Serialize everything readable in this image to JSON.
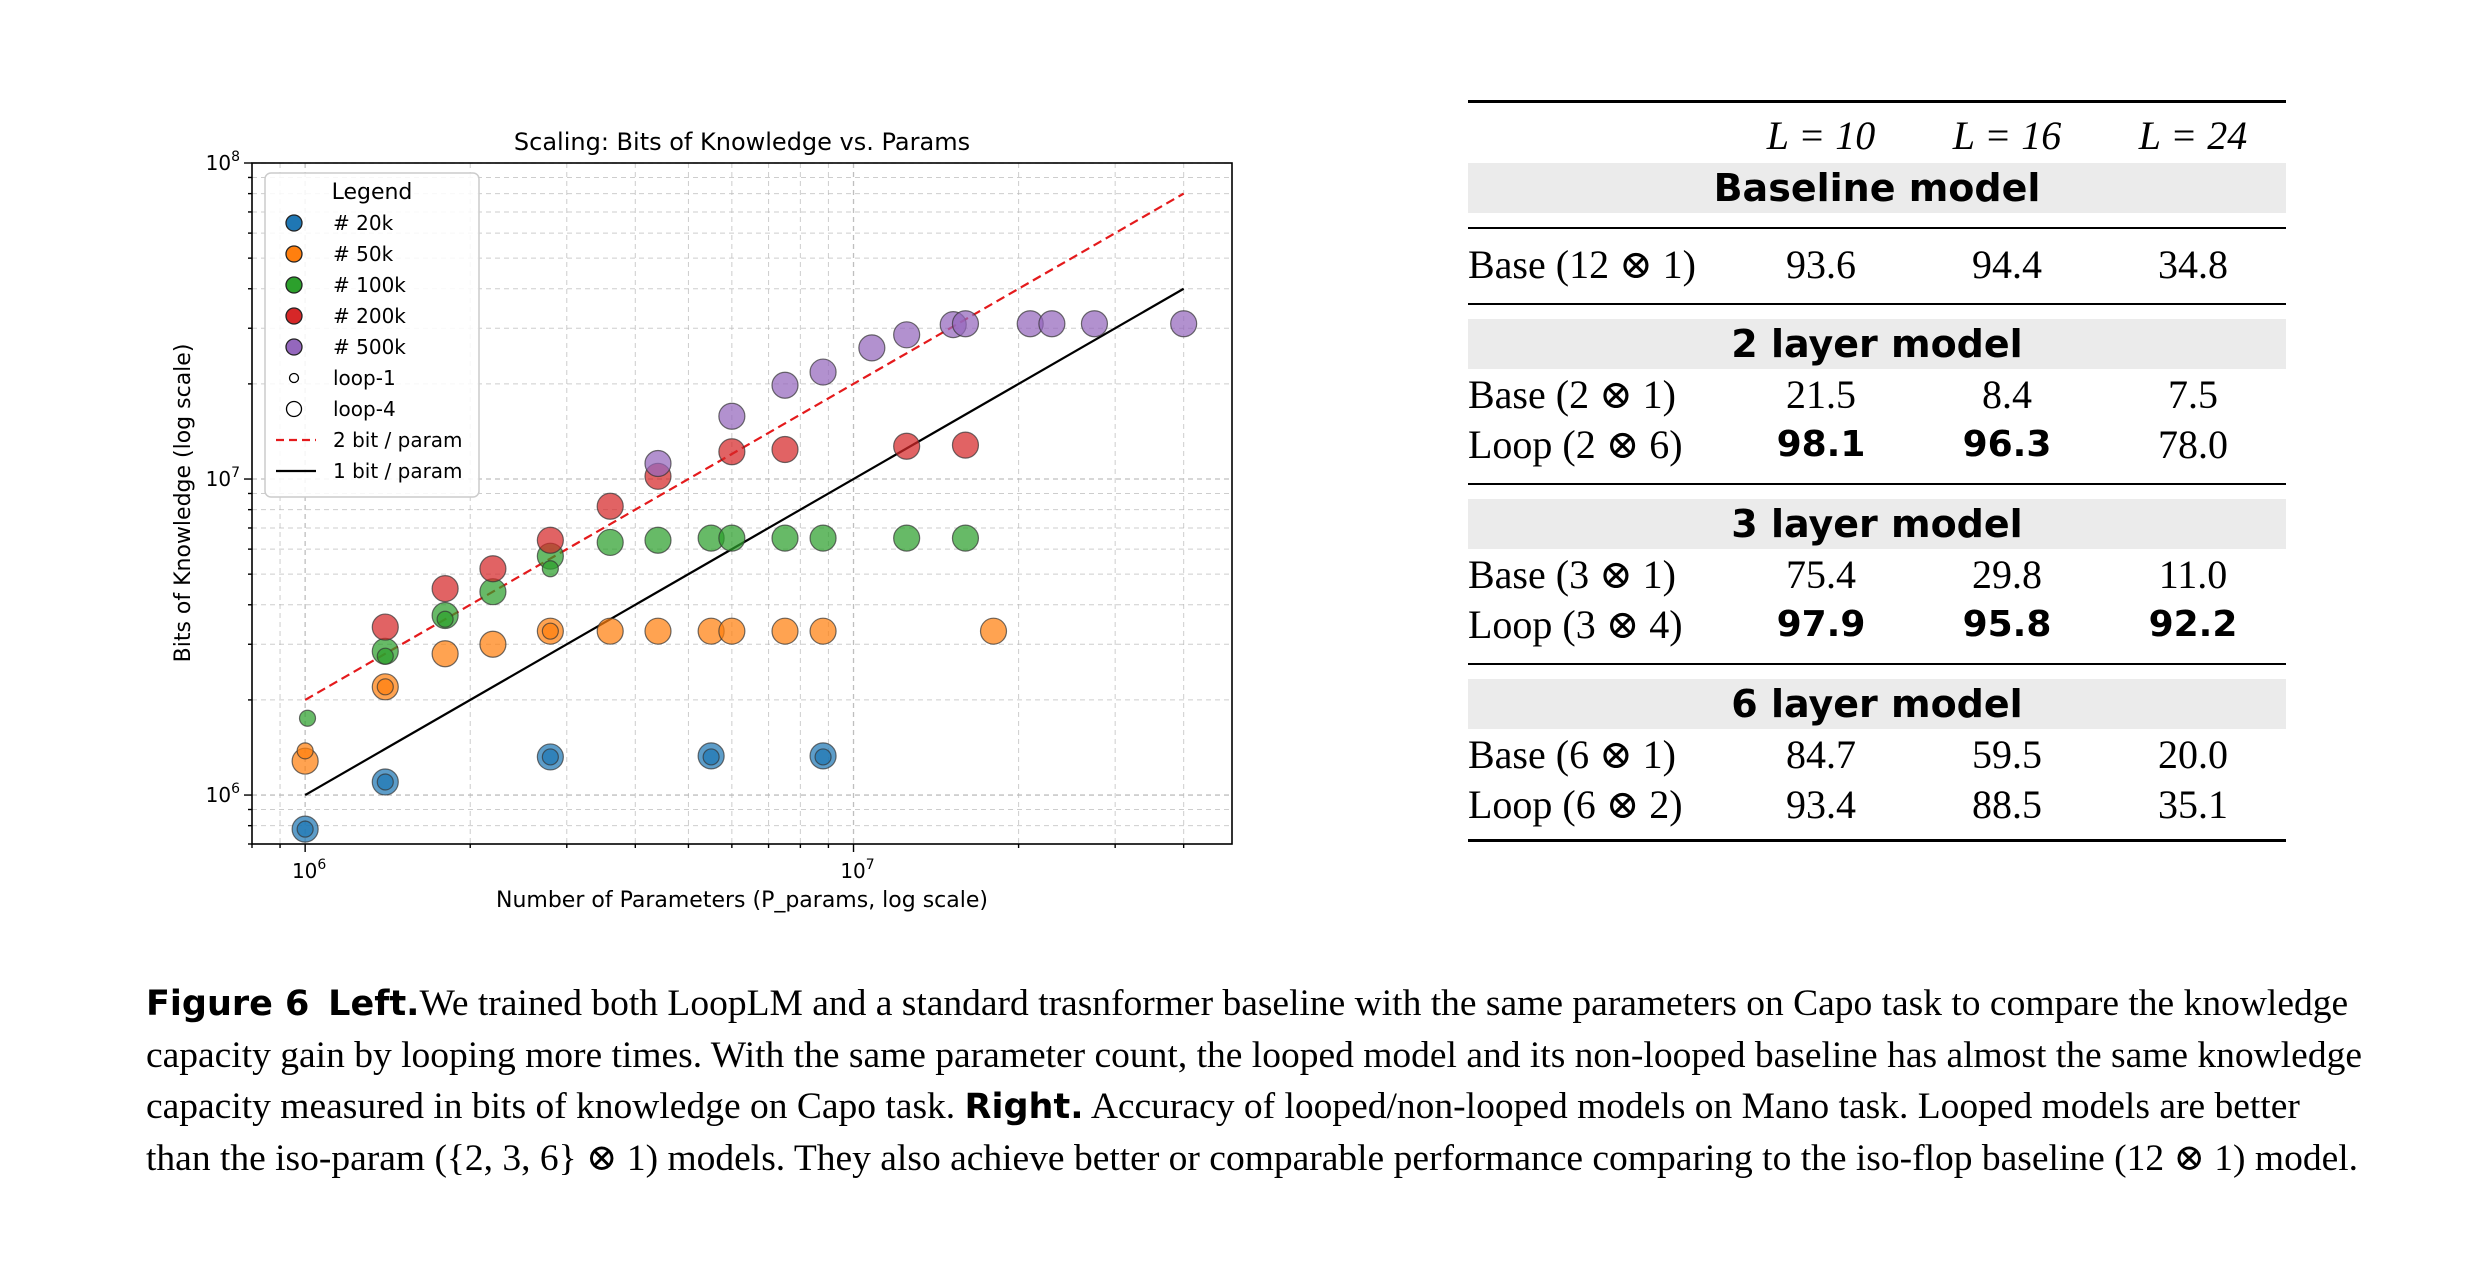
{
  "chart_data": {
    "type": "scatter",
    "title": "Scaling: Bits of Knowledge vs. Params",
    "xlabel": "Number of Parameters (P_params, log scale)",
    "ylabel": "Bits of Knowledge (log scale)",
    "xscale": "log",
    "yscale": "log",
    "xlim": [
      800000,
      49000000
    ],
    "ylim": [
      700000,
      100000000
    ],
    "xticks": [
      {
        "base": "10",
        "exp": "6"
      },
      {
        "base": "10",
        "exp": "7"
      }
    ],
    "yticks": [
      {
        "base": "10",
        "exp": "6"
      },
      {
        "base": "10",
        "exp": "7"
      },
      {
        "base": "10",
        "exp": "8"
      }
    ],
    "grid": true,
    "legend": {
      "title": "Legend",
      "position": "upper-left",
      "items": [
        {
          "label": "# 20k",
          "kind": "dot",
          "color": "#1f77b4"
        },
        {
          "label": "# 50k",
          "kind": "dot",
          "color": "#ff7f0e"
        },
        {
          "label": "# 100k",
          "kind": "dot",
          "color": "#2ca02c"
        },
        {
          "label": "# 200k",
          "kind": "dot",
          "color": "#d62728"
        },
        {
          "label": "# 500k",
          "kind": "dot",
          "color": "#9467bd"
        },
        {
          "label": "loop-1",
          "kind": "small-circle",
          "color": "#000000"
        },
        {
          "label": "loop-4",
          "kind": "large-circle",
          "color": "#000000"
        },
        {
          "label": "2 bit / param",
          "kind": "dashed-line",
          "color": "#e41a1c"
        },
        {
          "label": "1 bit / param",
          "kind": "solid-line",
          "color": "#000000"
        }
      ]
    },
    "lines": [
      {
        "name": "2 bit / param",
        "x": [
          1000000,
          40000000
        ],
        "y": [
          2000000,
          80000000
        ],
        "color": "#e41a1c",
        "style": "dashed"
      },
      {
        "name": "1 bit / param",
        "x": [
          1000000,
          40000000
        ],
        "y": [
          1000000,
          40000000
        ],
        "color": "#000000",
        "style": "solid"
      }
    ],
    "series": [
      {
        "name": "# 20k",
        "color": "#1f77b4",
        "points": [
          {
            "x": 1000000,
            "y": 780000,
            "size": "large"
          },
          {
            "x": 1000000,
            "y": 780000,
            "size": "small"
          },
          {
            "x": 1400000,
            "y": 1100000,
            "size": "large"
          },
          {
            "x": 1400000,
            "y": 1100000,
            "size": "small"
          },
          {
            "x": 2800000,
            "y": 1320000,
            "size": "large"
          },
          {
            "x": 2800000,
            "y": 1320000,
            "size": "small"
          },
          {
            "x": 5500000,
            "y": 1330000,
            "size": "large"
          },
          {
            "x": 5500000,
            "y": 1320000,
            "size": "small"
          },
          {
            "x": 8800000,
            "y": 1330000,
            "size": "large"
          },
          {
            "x": 8800000,
            "y": 1320000,
            "size": "small"
          }
        ]
      },
      {
        "name": "# 50k",
        "color": "#ff7f0e",
        "points": [
          {
            "x": 1000000,
            "y": 1280000,
            "size": "large"
          },
          {
            "x": 1000000,
            "y": 1380000,
            "size": "small"
          },
          {
            "x": 1400000,
            "y": 2200000,
            "size": "large"
          },
          {
            "x": 1400000,
            "y": 2200000,
            "size": "small"
          },
          {
            "x": 1800000,
            "y": 2800000,
            "size": "large"
          },
          {
            "x": 2200000,
            "y": 3000000,
            "size": "large"
          },
          {
            "x": 2800000,
            "y": 3300000,
            "size": "large"
          },
          {
            "x": 2800000,
            "y": 3300000,
            "size": "small"
          },
          {
            "x": 3600000,
            "y": 3300000,
            "size": "large"
          },
          {
            "x": 4400000,
            "y": 3300000,
            "size": "large"
          },
          {
            "x": 5500000,
            "y": 3300000,
            "size": "large"
          },
          {
            "x": 6000000,
            "y": 3300000,
            "size": "large"
          },
          {
            "x": 7500000,
            "y": 3300000,
            "size": "large"
          },
          {
            "x": 8800000,
            "y": 3300000,
            "size": "large"
          },
          {
            "x": 18000000,
            "y": 3300000,
            "size": "large"
          }
        ]
      },
      {
        "name": "# 100k",
        "color": "#2ca02c",
        "points": [
          {
            "x": 1010000,
            "y": 1750000,
            "size": "small"
          },
          {
            "x": 1400000,
            "y": 2850000,
            "size": "large"
          },
          {
            "x": 1400000,
            "y": 2750000,
            "size": "small"
          },
          {
            "x": 1800000,
            "y": 3700000,
            "size": "large"
          },
          {
            "x": 1800000,
            "y": 3600000,
            "size": "small"
          },
          {
            "x": 2200000,
            "y": 4400000,
            "size": "large"
          },
          {
            "x": 2800000,
            "y": 5700000,
            "size": "large"
          },
          {
            "x": 2800000,
            "y": 5200000,
            "size": "small"
          },
          {
            "x": 3600000,
            "y": 6300000,
            "size": "large"
          },
          {
            "x": 4400000,
            "y": 6400000,
            "size": "large"
          },
          {
            "x": 5500000,
            "y": 6500000,
            "size": "large"
          },
          {
            "x": 6000000,
            "y": 6500000,
            "size": "large"
          },
          {
            "x": 7500000,
            "y": 6500000,
            "size": "large"
          },
          {
            "x": 8800000,
            "y": 6500000,
            "size": "large"
          },
          {
            "x": 12500000,
            "y": 6500000,
            "size": "large"
          },
          {
            "x": 16000000,
            "y": 6500000,
            "size": "large"
          }
        ]
      },
      {
        "name": "# 200k",
        "color": "#d62728",
        "points": [
          {
            "x": 1400000,
            "y": 3400000,
            "size": "large"
          },
          {
            "x": 1800000,
            "y": 4500000,
            "size": "large"
          },
          {
            "x": 2200000,
            "y": 5200000,
            "size": "large"
          },
          {
            "x": 2800000,
            "y": 6400000,
            "size": "large"
          },
          {
            "x": 3600000,
            "y": 8200000,
            "size": "large"
          },
          {
            "x": 4400000,
            "y": 10200000,
            "size": "large"
          },
          {
            "x": 6000000,
            "y": 12200000,
            "size": "large"
          },
          {
            "x": 7500000,
            "y": 12400000,
            "size": "large"
          },
          {
            "x": 12500000,
            "y": 12700000,
            "size": "large"
          },
          {
            "x": 16000000,
            "y": 12800000,
            "size": "large"
          }
        ]
      },
      {
        "name": "# 500k",
        "color": "#9467bd",
        "points": [
          {
            "x": 4400000,
            "y": 11200000,
            "size": "large"
          },
          {
            "x": 6000000,
            "y": 15800000,
            "size": "large"
          },
          {
            "x": 7500000,
            "y": 19800000,
            "size": "large"
          },
          {
            "x": 8800000,
            "y": 21800000,
            "size": "large"
          },
          {
            "x": 10800000,
            "y": 26000000,
            "size": "large"
          },
          {
            "x": 12500000,
            "y": 28600000,
            "size": "large"
          },
          {
            "x": 15200000,
            "y": 30800000,
            "size": "large"
          },
          {
            "x": 16000000,
            "y": 31000000,
            "size": "large"
          },
          {
            "x": 21000000,
            "y": 31000000,
            "size": "large"
          },
          {
            "x": 23000000,
            "y": 31000000,
            "size": "large"
          },
          {
            "x": 27500000,
            "y": 31000000,
            "size": "large"
          },
          {
            "x": 40000000,
            "y": 31000000,
            "size": "large"
          }
        ]
      }
    ]
  },
  "table": {
    "headers": [
      "L = 10",
      "L = 16",
      "L = 24"
    ],
    "sections": [
      {
        "title": "Baseline model",
        "rows": [
          {
            "label": "Base (12 ⊗ 1)",
            "cells": [
              {
                "v": "93.6",
                "b": false
              },
              {
                "v": "94.4",
                "b": false
              },
              {
                "v": "34.8",
                "b": false
              }
            ]
          }
        ]
      },
      {
        "title": "2 layer model",
        "rows": [
          {
            "label": "Base (2 ⊗ 1)",
            "cells": [
              {
                "v": "21.5",
                "b": false
              },
              {
                "v": "8.4",
                "b": false
              },
              {
                "v": "7.5",
                "b": false
              }
            ]
          },
          {
            "label": "Loop (2 ⊗ 6)",
            "cells": [
              {
                "v": "98.1",
                "b": true
              },
              {
                "v": "96.3",
                "b": true
              },
              {
                "v": "78.0",
                "b": false
              }
            ]
          }
        ]
      },
      {
        "title": "3 layer model",
        "rows": [
          {
            "label": "Base (3 ⊗ 1)",
            "cells": [
              {
                "v": "75.4",
                "b": false
              },
              {
                "v": "29.8",
                "b": false
              },
              {
                "v": "11.0",
                "b": false
              }
            ]
          },
          {
            "label": "Loop (3 ⊗ 4)",
            "cells": [
              {
                "v": "97.9",
                "b": true
              },
              {
                "v": "95.8",
                "b": true
              },
              {
                "v": "92.2",
                "b": true
              }
            ]
          }
        ]
      },
      {
        "title": "6 layer model",
        "rows": [
          {
            "label": "Base (6 ⊗ 1)",
            "cells": [
              {
                "v": "84.7",
                "b": false
              },
              {
                "v": "59.5",
                "b": false
              },
              {
                "v": "20.0",
                "b": false
              }
            ]
          },
          {
            "label": "Loop (6 ⊗ 2)",
            "cells": [
              {
                "v": "93.4",
                "b": false
              },
              {
                "v": "88.5",
                "b": false
              },
              {
                "v": "35.1",
                "b": false
              }
            ]
          }
        ]
      }
    ]
  },
  "caption": {
    "figure_label": "Figure 6",
    "left_label": "Left.",
    "left_text": "We trained both LoopLM and a standard trasnformer baseline with the same parameters on Capo task to compare the knowledge capacity gain by looping more times. With the same parameter count, the looped model and its non-looped baseline has almost the same knowledge capacity measured in bits of knowledge on Capo task.",
    "right_label": "Right.",
    "right_text": "Accuracy of looped/non-looped models on Mano task. Looped models are better than the iso-param ({2, 3, 6} ⊗ 1) models. They also achieve better or comparable performance comparing to the iso-flop baseline (12 ⊗ 1) model."
  }
}
